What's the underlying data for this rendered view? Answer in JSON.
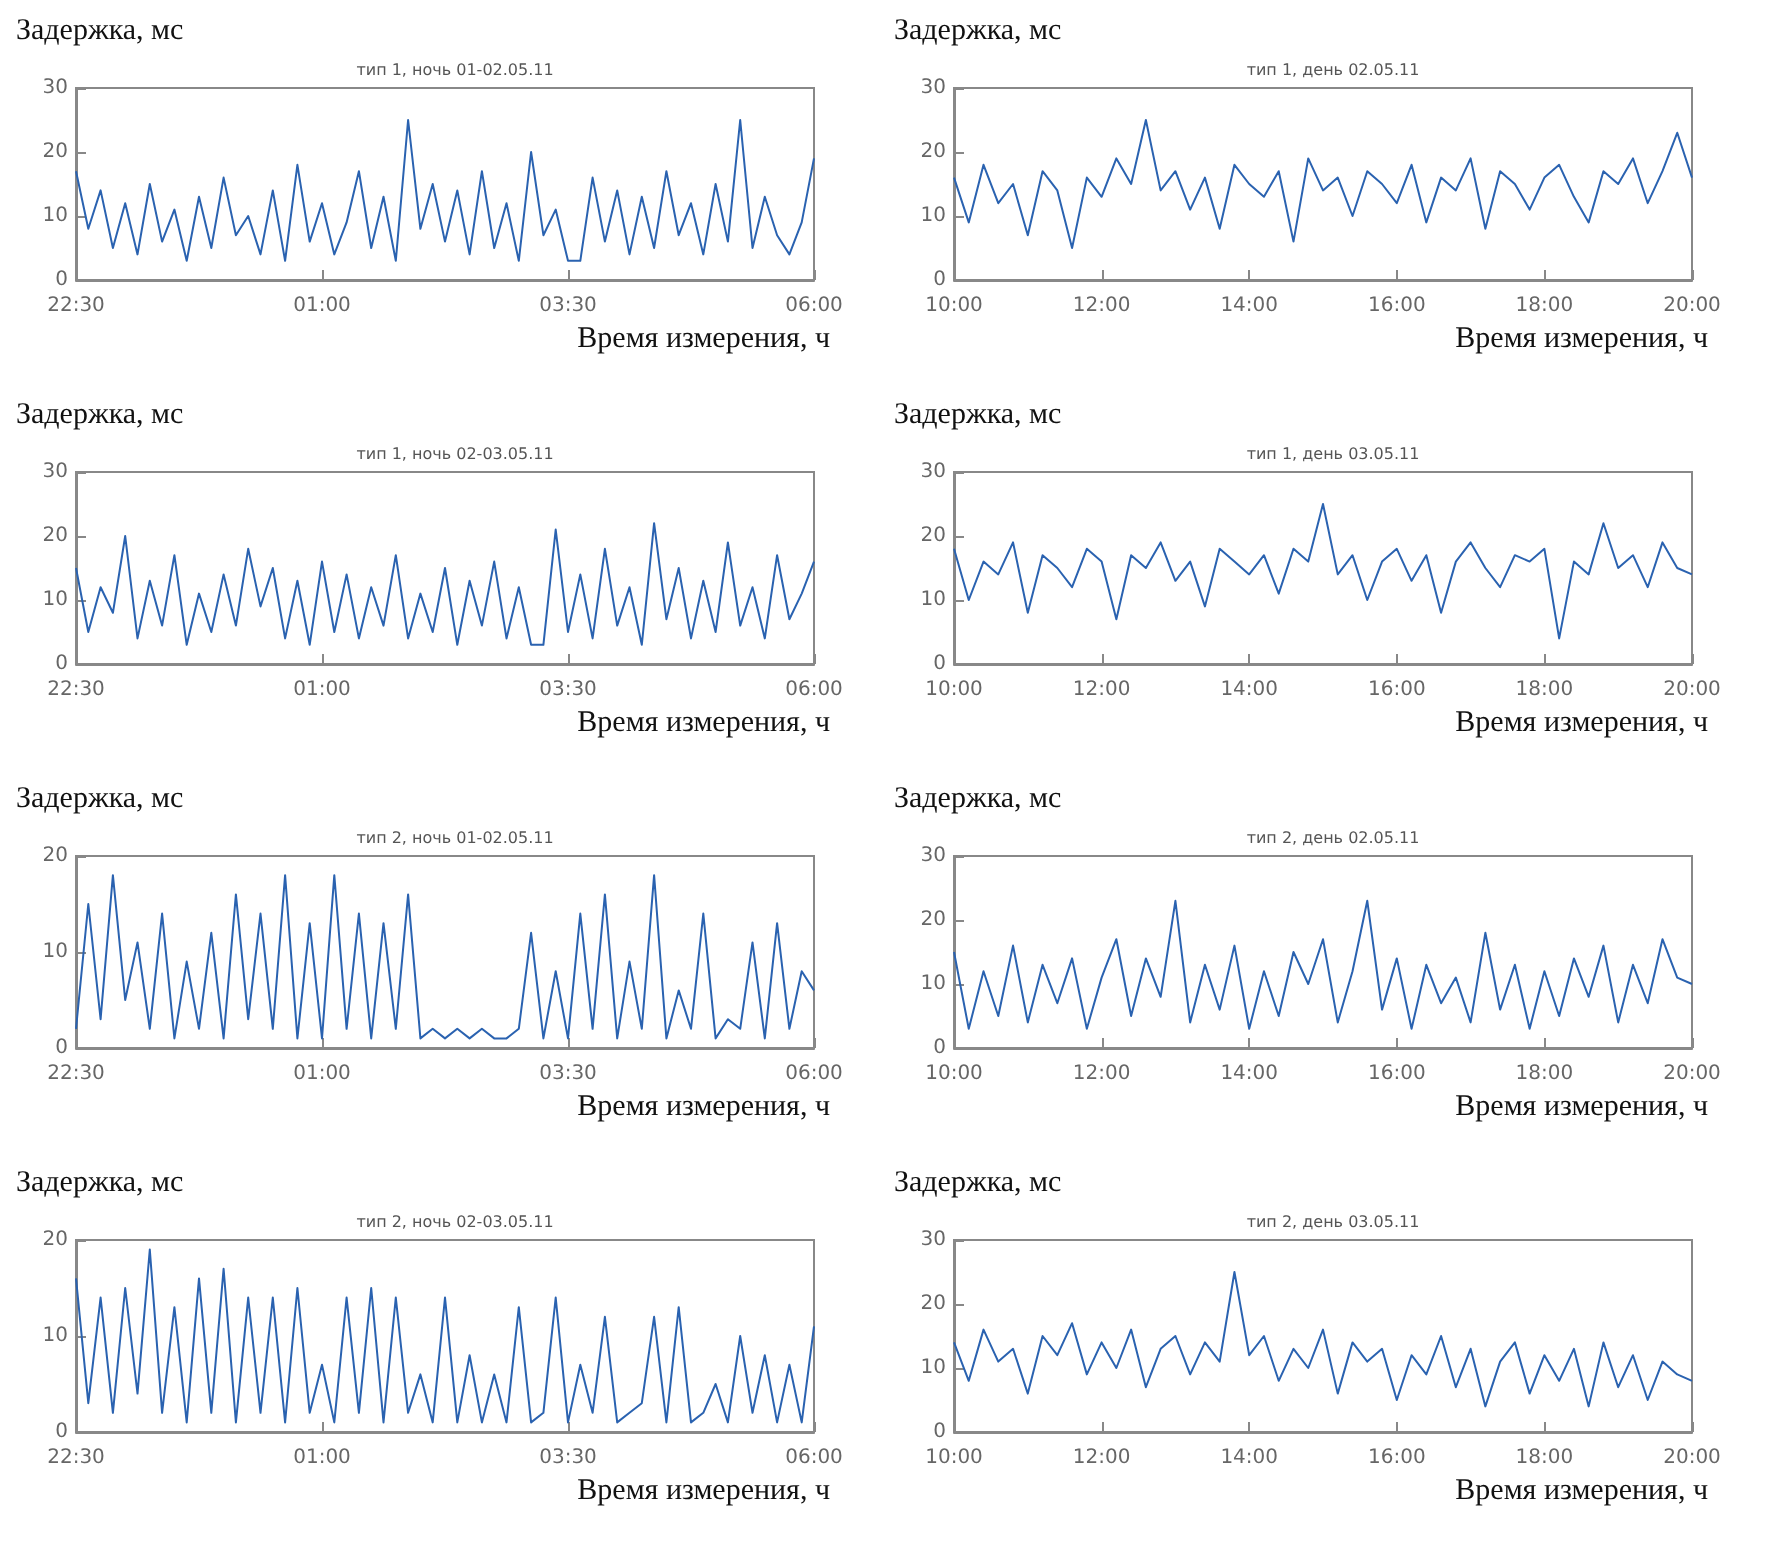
{
  "chart_data": [
    {
      "type": "line",
      "title": "тип 1, ночь 01-02.05.11",
      "ylabel": "Задержка, мс",
      "xlabel": "Время измерения, ч",
      "color": "#2a62b0",
      "xlim": [
        "--05-01T22:30",
        "--05-02T06:00"
      ],
      "xticks": [
        {
          "value": "--05-01T22:30",
          "label": "22:30"
        },
        {
          "value": "--05-02T01:00",
          "label": "01:00"
        },
        {
          "value": "--05-02T03:30",
          "label": "03:30"
        },
        {
          "value": "--05-02T06:00",
          "label": "06:00"
        }
      ],
      "ylim": [
        0,
        30
      ],
      "yticks": [
        0,
        10,
        20,
        30
      ],
      "x": [
        "--05-01T22:30",
        "--05-01T22:37:30",
        "--05-01T22:45",
        "--05-01T22:52:30",
        "--05-01T23:00",
        "--05-01T23:07:30",
        "--05-01T23:15",
        "--05-01T23:22:30",
        "--05-01T23:30",
        "--05-01T23:37:30",
        "--05-01T23:45",
        "--05-01T23:52:30",
        "--05-02T00:00",
        "--05-02T00:07:30",
        "--05-02T00:15",
        "--05-02T00:22:30",
        "--05-02T00:30",
        "--05-02T00:37:30",
        "--05-02T00:45",
        "--05-02T00:52:30",
        "--05-02T01:00",
        "--05-02T01:07:30",
        "--05-02T01:15",
        "--05-02T01:22:30",
        "--05-02T01:30",
        "--05-02T01:37:30",
        "--05-02T01:45",
        "--05-02T01:52:30",
        "--05-02T02:00",
        "--05-02T02:07:30",
        "--05-02T02:15",
        "--05-02T02:22:30",
        "--05-02T02:30",
        "--05-02T02:37:30",
        "--05-02T02:45",
        "--05-02T02:52:30",
        "--05-02T03:00",
        "--05-02T03:07:30",
        "--05-02T03:15",
        "--05-02T03:22:30",
        "--05-02T03:30",
        "--05-02T03:37:30",
        "--05-02T03:45",
        "--05-02T03:52:30",
        "--05-02T04:00",
        "--05-02T04:07:30",
        "--05-02T04:15",
        "--05-02T04:22:30",
        "--05-02T04:30",
        "--05-02T04:37:30",
        "--05-02T04:45",
        "--05-02T04:52:30",
        "--05-02T05:00",
        "--05-02T05:07:30",
        "--05-02T05:15",
        "--05-02T05:22:30",
        "--05-02T05:30",
        "--05-02T05:37:30",
        "--05-02T05:45",
        "--05-02T05:52:30",
        "--05-02T06:00"
      ],
      "values": [
        17,
        8,
        14,
        5,
        12,
        4,
        15,
        6,
        11,
        3,
        13,
        5,
        16,
        7,
        10,
        4,
        14,
        3,
        18,
        6,
        12,
        4,
        9,
        17,
        5,
        13,
        3,
        25,
        8,
        15,
        6,
        14,
        4,
        17,
        5,
        12,
        3,
        20,
        7,
        11,
        3,
        3,
        16,
        6,
        14,
        4,
        13,
        5,
        17,
        7,
        12,
        4,
        15,
        6,
        25,
        5,
        13,
        7,
        4,
        9,
        19
      ]
    },
    {
      "type": "line",
      "title": "тип 1, день 02.05.11",
      "ylabel": "Задержка, мс",
      "xlabel": "Время измерения, ч",
      "color": "#2a62b0",
      "xlim": [
        "--05-02T10:00",
        "--05-02T20:00"
      ],
      "xticks": [
        {
          "value": "--05-02T10:00",
          "label": "10:00"
        },
        {
          "value": "--05-02T12:00",
          "label": "12:00"
        },
        {
          "value": "--05-02T14:00",
          "label": "14:00"
        },
        {
          "value": "--05-02T16:00",
          "label": "16:00"
        },
        {
          "value": "--05-02T18:00",
          "label": "18:00"
        },
        {
          "value": "--05-02T20:00",
          "label": "20:00"
        }
      ],
      "ylim": [
        0,
        30
      ],
      "yticks": [
        0,
        10,
        20,
        30
      ],
      "x": [
        "--05-02T10:00",
        "--05-02T10:12",
        "--05-02T10:24",
        "--05-02T10:36",
        "--05-02T10:48",
        "--05-02T11:00",
        "--05-02T11:12",
        "--05-02T11:24",
        "--05-02T11:36",
        "--05-02T11:48",
        "--05-02T12:00",
        "--05-02T12:12",
        "--05-02T12:24",
        "--05-02T12:36",
        "--05-02T12:48",
        "--05-02T13:00",
        "--05-02T13:12",
        "--05-02T13:24",
        "--05-02T13:36",
        "--05-02T13:48",
        "--05-02T14:00",
        "--05-02T14:12",
        "--05-02T14:24",
        "--05-02T14:36",
        "--05-02T14:48",
        "--05-02T15:00",
        "--05-02T15:12",
        "--05-02T15:24",
        "--05-02T15:36",
        "--05-02T15:48",
        "--05-02T16:00",
        "--05-02T16:12",
        "--05-02T16:24",
        "--05-02T16:36",
        "--05-02T16:48",
        "--05-02T17:00",
        "--05-02T17:12",
        "--05-02T17:24",
        "--05-02T17:36",
        "--05-02T17:48",
        "--05-02T18:00",
        "--05-02T18:12",
        "--05-02T18:24",
        "--05-02T18:36",
        "--05-02T18:48",
        "--05-02T19:00",
        "--05-02T19:12",
        "--05-02T19:24",
        "--05-02T19:36",
        "--05-02T19:48",
        "--05-02T20:00"
      ],
      "values": [
        16,
        9,
        18,
        12,
        15,
        7,
        17,
        14,
        5,
        16,
        13,
        19,
        15,
        25,
        14,
        17,
        11,
        16,
        8,
        18,
        15,
        13,
        17,
        6,
        19,
        14,
        16,
        10,
        17,
        15,
        12,
        18,
        9,
        16,
        14,
        19,
        8,
        17,
        15,
        11,
        16,
        18,
        13,
        9,
        17,
        15,
        19,
        12,
        17,
        23,
        16
      ]
    },
    {
      "type": "line",
      "title": "тип 1, ночь 02-03.05.11",
      "ylabel": "Задержка, мс",
      "xlabel": "Время измерения, ч",
      "color": "#2a62b0",
      "xlim": [
        "--05-02T22:30",
        "--05-03T06:00"
      ],
      "xticks": [
        {
          "value": "--05-02T22:30",
          "label": "22:30"
        },
        {
          "value": "--05-03T01:00",
          "label": "01:00"
        },
        {
          "value": "--05-03T03:30",
          "label": "03:30"
        },
        {
          "value": "--05-03T06:00",
          "label": "06:00"
        }
      ],
      "ylim": [
        0,
        30
      ],
      "yticks": [
        0,
        10,
        20,
        30
      ],
      "x": [
        "--05-02T22:30",
        "--05-02T22:37:30",
        "--05-02T22:45",
        "--05-02T22:52:30",
        "--05-02T23:00",
        "--05-02T23:07:30",
        "--05-02T23:15",
        "--05-02T23:22:30",
        "--05-02T23:30",
        "--05-02T23:37:30",
        "--05-02T23:45",
        "--05-02T23:52:30",
        "--05-03T00:00",
        "--05-03T00:07:30",
        "--05-03T00:15",
        "--05-03T00:22:30",
        "--05-03T00:30",
        "--05-03T00:37:30",
        "--05-03T00:45",
        "--05-03T00:52:30",
        "--05-03T01:00",
        "--05-03T01:07:30",
        "--05-03T01:15",
        "--05-03T01:22:30",
        "--05-03T01:30",
        "--05-03T01:37:30",
        "--05-03T01:45",
        "--05-03T01:52:30",
        "--05-03T02:00",
        "--05-03T02:07:30",
        "--05-03T02:15",
        "--05-03T02:22:30",
        "--05-03T02:30",
        "--05-03T02:37:30",
        "--05-03T02:45",
        "--05-03T02:52:30",
        "--05-03T03:00",
        "--05-03T03:07:30",
        "--05-03T03:15",
        "--05-03T03:22:30",
        "--05-03T03:30",
        "--05-03T03:37:30",
        "--05-03T03:45",
        "--05-03T03:52:30",
        "--05-03T04:00",
        "--05-03T04:07:30",
        "--05-03T04:15",
        "--05-03T04:22:30",
        "--05-03T04:30",
        "--05-03T04:37:30",
        "--05-03T04:45",
        "--05-03T04:52:30",
        "--05-03T05:00",
        "--05-03T05:07:30",
        "--05-03T05:15",
        "--05-03T05:22:30",
        "--05-03T05:30",
        "--05-03T05:37:30",
        "--05-03T05:45",
        "--05-03T05:52:30",
        "--05-03T06:00"
      ],
      "values": [
        15,
        5,
        12,
        8,
        20,
        4,
        13,
        6,
        17,
        3,
        11,
        5,
        14,
        6,
        18,
        9,
        15,
        4,
        13,
        3,
        16,
        5,
        14,
        4,
        12,
        6,
        17,
        4,
        11,
        5,
        15,
        3,
        13,
        6,
        16,
        4,
        12,
        3,
        3,
        21,
        5,
        14,
        4,
        18,
        6,
        12,
        3,
        22,
        7,
        15,
        4,
        13,
        5,
        19,
        6,
        12,
        4,
        17,
        7,
        11,
        16
      ]
    },
    {
      "type": "line",
      "title": "тип 1, день 03.05.11",
      "ylabel": "Задержка, мс",
      "xlabel": "Время измерения, ч",
      "color": "#2a62b0",
      "xlim": [
        "--05-03T10:00",
        "--05-03T20:00"
      ],
      "xticks": [
        {
          "value": "--05-03T10:00",
          "label": "10:00"
        },
        {
          "value": "--05-03T12:00",
          "label": "12:00"
        },
        {
          "value": "--05-03T14:00",
          "label": "14:00"
        },
        {
          "value": "--05-03T16:00",
          "label": "16:00"
        },
        {
          "value": "--05-03T18:00",
          "label": "18:00"
        },
        {
          "value": "--05-03T20:00",
          "label": "20:00"
        }
      ],
      "ylim": [
        0,
        30
      ],
      "yticks": [
        0,
        10,
        20,
        30
      ],
      "x": [
        "--05-03T10:00",
        "--05-03T10:12",
        "--05-03T10:24",
        "--05-03T10:36",
        "--05-03T10:48",
        "--05-03T11:00",
        "--05-03T11:12",
        "--05-03T11:24",
        "--05-03T11:36",
        "--05-03T11:48",
        "--05-03T12:00",
        "--05-03T12:12",
        "--05-03T12:24",
        "--05-03T12:36",
        "--05-03T12:48",
        "--05-03T13:00",
        "--05-03T13:12",
        "--05-03T13:24",
        "--05-03T13:36",
        "--05-03T13:48",
        "--05-03T14:00",
        "--05-03T14:12",
        "--05-03T14:24",
        "--05-03T14:36",
        "--05-03T14:48",
        "--05-03T15:00",
        "--05-03T15:12",
        "--05-03T15:24",
        "--05-03T15:36",
        "--05-03T15:48",
        "--05-03T16:00",
        "--05-03T16:12",
        "--05-03T16:24",
        "--05-03T16:36",
        "--05-03T16:48",
        "--05-03T17:00",
        "--05-03T17:12",
        "--05-03T17:24",
        "--05-03T17:36",
        "--05-03T17:48",
        "--05-03T18:00",
        "--05-03T18:12",
        "--05-03T18:24",
        "--05-03T18:36",
        "--05-03T18:48",
        "--05-03T19:00",
        "--05-03T19:12",
        "--05-03T19:24",
        "--05-03T19:36",
        "--05-03T19:48",
        "--05-03T20:00"
      ],
      "values": [
        18,
        10,
        16,
        14,
        19,
        8,
        17,
        15,
        12,
        18,
        16,
        7,
        17,
        15,
        19,
        13,
        16,
        9,
        18,
        16,
        14,
        17,
        11,
        18,
        16,
        25,
        14,
        17,
        10,
        16,
        18,
        13,
        17,
        8,
        16,
        19,
        15,
        12,
        17,
        16,
        18,
        4,
        16,
        14,
        22,
        15,
        17,
        12,
        19,
        15,
        14
      ]
    },
    {
      "type": "line",
      "title": "тип 2, ночь 01-02.05.11",
      "ylabel": "Задержка, мс",
      "xlabel": "Время измерения, ч",
      "color": "#2a62b0",
      "xlim": [
        "--05-01T22:30",
        "--05-02T06:00"
      ],
      "xticks": [
        {
          "value": "--05-01T22:30",
          "label": "22:30"
        },
        {
          "value": "--05-02T01:00",
          "label": "01:00"
        },
        {
          "value": "--05-02T03:30",
          "label": "03:30"
        },
        {
          "value": "--05-02T06:00",
          "label": "06:00"
        }
      ],
      "ylim": [
        0,
        20
      ],
      "yticks": [
        0,
        10,
        20
      ],
      "x": [
        "--05-01T22:30",
        "--05-01T22:37:30",
        "--05-01T22:45",
        "--05-01T22:52:30",
        "--05-01T23:00",
        "--05-01T23:07:30",
        "--05-01T23:15",
        "--05-01T23:22:30",
        "--05-01T23:30",
        "--05-01T23:37:30",
        "--05-01T23:45",
        "--05-01T23:52:30",
        "--05-02T00:00",
        "--05-02T00:07:30",
        "--05-02T00:15",
        "--05-02T00:22:30",
        "--05-02T00:30",
        "--05-02T00:37:30",
        "--05-02T00:45",
        "--05-02T00:52:30",
        "--05-02T01:00",
        "--05-02T01:07:30",
        "--05-02T01:15",
        "--05-02T01:22:30",
        "--05-02T01:30",
        "--05-02T01:37:30",
        "--05-02T01:45",
        "--05-02T01:52:30",
        "--05-02T02:00",
        "--05-02T02:07:30",
        "--05-02T02:15",
        "--05-02T02:22:30",
        "--05-02T02:30",
        "--05-02T02:37:30",
        "--05-02T02:45",
        "--05-02T02:52:30",
        "--05-02T03:00",
        "--05-02T03:07:30",
        "--05-02T03:15",
        "--05-02T03:22:30",
        "--05-02T03:30",
        "--05-02T03:37:30",
        "--05-02T03:45",
        "--05-02T03:52:30",
        "--05-02T04:00",
        "--05-02T04:07:30",
        "--05-02T04:15",
        "--05-02T04:22:30",
        "--05-02T04:30",
        "--05-02T04:37:30",
        "--05-02T04:45",
        "--05-02T04:52:30",
        "--05-02T05:00",
        "--05-02T05:07:30",
        "--05-02T05:15",
        "--05-02T05:22:30",
        "--05-02T05:30",
        "--05-02T05:37:30",
        "--05-02T05:45",
        "--05-02T05:52:30",
        "--05-02T06:00"
      ],
      "values": [
        2,
        15,
        3,
        18,
        5,
        11,
        2,
        14,
        1,
        9,
        2,
        12,
        1,
        16,
        3,
        14,
        2,
        18,
        1,
        13,
        1,
        18,
        2,
        14,
        1,
        13,
        2,
        16,
        1,
        2,
        1,
        2,
        1,
        2,
        1,
        1,
        2,
        12,
        1,
        8,
        1,
        14,
        2,
        16,
        1,
        9,
        2,
        18,
        1,
        6,
        2,
        14,
        1,
        3,
        2,
        11,
        1,
        13,
        2,
        8,
        6
      ]
    },
    {
      "type": "line",
      "title": "тип 2, день 02.05.11",
      "ylabel": "Задержка, мс",
      "xlabel": "Время измерения, ч",
      "color": "#2a62b0",
      "xlim": [
        "--05-02T10:00",
        "--05-02T20:00"
      ],
      "xticks": [
        {
          "value": "--05-02T10:00",
          "label": "10:00"
        },
        {
          "value": "--05-02T12:00",
          "label": "12:00"
        },
        {
          "value": "--05-02T14:00",
          "label": "14:00"
        },
        {
          "value": "--05-02T16:00",
          "label": "16:00"
        },
        {
          "value": "--05-02T18:00",
          "label": "18:00"
        },
        {
          "value": "--05-02T20:00",
          "label": "20:00"
        }
      ],
      "ylim": [
        0,
        30
      ],
      "yticks": [
        0,
        10,
        20,
        30
      ],
      "x": [
        "--05-02T10:00",
        "--05-02T10:12",
        "--05-02T10:24",
        "--05-02T10:36",
        "--05-02T10:48",
        "--05-02T11:00",
        "--05-02T11:12",
        "--05-02T11:24",
        "--05-02T11:36",
        "--05-02T11:48",
        "--05-02T12:00",
        "--05-02T12:12",
        "--05-02T12:24",
        "--05-02T12:36",
        "--05-02T12:48",
        "--05-02T13:00",
        "--05-02T13:12",
        "--05-02T13:24",
        "--05-02T13:36",
        "--05-02T13:48",
        "--05-02T14:00",
        "--05-02T14:12",
        "--05-02T14:24",
        "--05-02T14:36",
        "--05-02T14:48",
        "--05-02T15:00",
        "--05-02T15:12",
        "--05-02T15:24",
        "--05-02T15:36",
        "--05-02T15:48",
        "--05-02T16:00",
        "--05-02T16:12",
        "--05-02T16:24",
        "--05-02T16:36",
        "--05-02T16:48",
        "--05-02T17:00",
        "--05-02T17:12",
        "--05-02T17:24",
        "--05-02T17:36",
        "--05-02T17:48",
        "--05-02T18:00",
        "--05-02T18:12",
        "--05-02T18:24",
        "--05-02T18:36",
        "--05-02T18:48",
        "--05-02T19:00",
        "--05-02T19:12",
        "--05-02T19:24",
        "--05-02T19:36",
        "--05-02T19:48",
        "--05-02T20:00"
      ],
      "values": [
        15,
        3,
        12,
        5,
        16,
        4,
        13,
        7,
        14,
        3,
        11,
        17,
        5,
        14,
        8,
        23,
        4,
        13,
        6,
        16,
        3,
        12,
        5,
        15,
        10,
        17,
        4,
        12,
        23,
        6,
        14,
        3,
        13,
        7,
        11,
        4,
        18,
        6,
        13,
        3,
        12,
        5,
        14,
        8,
        16,
        4,
        13,
        7,
        17,
        11,
        10
      ]
    },
    {
      "type": "line",
      "title": "тип 2, ночь 02-03.05.11",
      "ylabel": "Задержка, мс",
      "xlabel": "Время измерения, ч",
      "color": "#2a62b0",
      "xlim": [
        "--05-02T22:30",
        "--05-03T06:00"
      ],
      "xticks": [
        {
          "value": "--05-02T22:30",
          "label": "22:30"
        },
        {
          "value": "--05-03T01:00",
          "label": "01:00"
        },
        {
          "value": "--05-03T03:30",
          "label": "03:30"
        },
        {
          "value": "--05-03T06:00",
          "label": "06:00"
        }
      ],
      "ylim": [
        0,
        20
      ],
      "yticks": [
        0,
        10,
        20
      ],
      "x": [
        "--05-02T22:30",
        "--05-02T22:37:30",
        "--05-02T22:45",
        "--05-02T22:52:30",
        "--05-02T23:00",
        "--05-02T23:07:30",
        "--05-02T23:15",
        "--05-02T23:22:30",
        "--05-02T23:30",
        "--05-02T23:37:30",
        "--05-02T23:45",
        "--05-02T23:52:30",
        "--05-03T00:00",
        "--05-03T00:07:30",
        "--05-03T00:15",
        "--05-03T00:22:30",
        "--05-03T00:30",
        "--05-03T00:37:30",
        "--05-03T00:45",
        "--05-03T00:52:30",
        "--05-03T01:00",
        "--05-03T01:07:30",
        "--05-03T01:15",
        "--05-03T01:22:30",
        "--05-03T01:30",
        "--05-03T01:37:30",
        "--05-03T01:45",
        "--05-03T01:52:30",
        "--05-03T02:00",
        "--05-03T02:07:30",
        "--05-03T02:15",
        "--05-03T02:22:30",
        "--05-03T02:30",
        "--05-03T02:37:30",
        "--05-03T02:45",
        "--05-03T02:52:30",
        "--05-03T03:00",
        "--05-03T03:07:30",
        "--05-03T03:15",
        "--05-03T03:22:30",
        "--05-03T03:30",
        "--05-03T03:37:30",
        "--05-03T03:45",
        "--05-03T03:52:30",
        "--05-03T04:00",
        "--05-03T04:07:30",
        "--05-03T04:15",
        "--05-03T04:22:30",
        "--05-03T04:30",
        "--05-03T04:37:30",
        "--05-03T04:45",
        "--05-03T04:52:30",
        "--05-03T05:00",
        "--05-03T05:07:30",
        "--05-03T05:15",
        "--05-03T05:22:30",
        "--05-03T05:30",
        "--05-03T05:37:30",
        "--05-03T05:45",
        "--05-03T05:52:30",
        "--05-03T06:00"
      ],
      "values": [
        16,
        3,
        14,
        2,
        15,
        4,
        19,
        2,
        13,
        1,
        16,
        2,
        17,
        1,
        14,
        2,
        14,
        1,
        15,
        2,
        7,
        1,
        14,
        2,
        15,
        1,
        14,
        2,
        6,
        1,
        14,
        1,
        8,
        1,
        6,
        1,
        13,
        1,
        2,
        14,
        1,
        7,
        2,
        12,
        1,
        2,
        3,
        12,
        1,
        13,
        1,
        2,
        5,
        1,
        10,
        2,
        8,
        1,
        7,
        1,
        11
      ]
    },
    {
      "type": "line",
      "title": "тип 2, день 03.05.11",
      "ylabel": "Задержка, мс",
      "xlabel": "Время измерения, ч",
      "color": "#2a62b0",
      "xlim": [
        "--05-03T10:00",
        "--05-03T20:00"
      ],
      "xticks": [
        {
          "value": "--05-03T10:00",
          "label": "10:00"
        },
        {
          "value": "--05-03T12:00",
          "label": "12:00"
        },
        {
          "value": "--05-03T14:00",
          "label": "14:00"
        },
        {
          "value": "--05-03T16:00",
          "label": "16:00"
        },
        {
          "value": "--05-03T18:00",
          "label": "18:00"
        },
        {
          "value": "--05-03T20:00",
          "label": "20:00"
        }
      ],
      "ylim": [
        0,
        30
      ],
      "yticks": [
        0,
        10,
        20,
        30
      ],
      "x": [
        "--05-03T10:00",
        "--05-03T10:12",
        "--05-03T10:24",
        "--05-03T10:36",
        "--05-03T10:48",
        "--05-03T11:00",
        "--05-03T11:12",
        "--05-03T11:24",
        "--05-03T11:36",
        "--05-03T11:48",
        "--05-03T12:00",
        "--05-03T12:12",
        "--05-03T12:24",
        "--05-03T12:36",
        "--05-03T12:48",
        "--05-03T13:00",
        "--05-03T13:12",
        "--05-03T13:24",
        "--05-03T13:36",
        "--05-03T13:48",
        "--05-03T14:00",
        "--05-03T14:12",
        "--05-03T14:24",
        "--05-03T14:36",
        "--05-03T14:48",
        "--05-03T15:00",
        "--05-03T15:12",
        "--05-03T15:24",
        "--05-03T15:36",
        "--05-03T15:48",
        "--05-03T16:00",
        "--05-03T16:12",
        "--05-03T16:24",
        "--05-03T16:36",
        "--05-03T16:48",
        "--05-03T17:00",
        "--05-03T17:12",
        "--05-03T17:24",
        "--05-03T17:36",
        "--05-03T17:48",
        "--05-03T18:00",
        "--05-03T18:12",
        "--05-03T18:24",
        "--05-03T18:36",
        "--05-03T18:48",
        "--05-03T19:00",
        "--05-03T19:12",
        "--05-03T19:24",
        "--05-03T19:36",
        "--05-03T19:48",
        "--05-03T20:00"
      ],
      "values": [
        14,
        8,
        16,
        11,
        13,
        6,
        15,
        12,
        17,
        9,
        14,
        10,
        16,
        7,
        13,
        15,
        9,
        14,
        11,
        25,
        12,
        15,
        8,
        13,
        10,
        16,
        6,
        14,
        11,
        13,
        5,
        12,
        9,
        15,
        7,
        13,
        4,
        11,
        14,
        6,
        12,
        8,
        13,
        4,
        14,
        7,
        12,
        5,
        11,
        9,
        8
      ]
    }
  ]
}
